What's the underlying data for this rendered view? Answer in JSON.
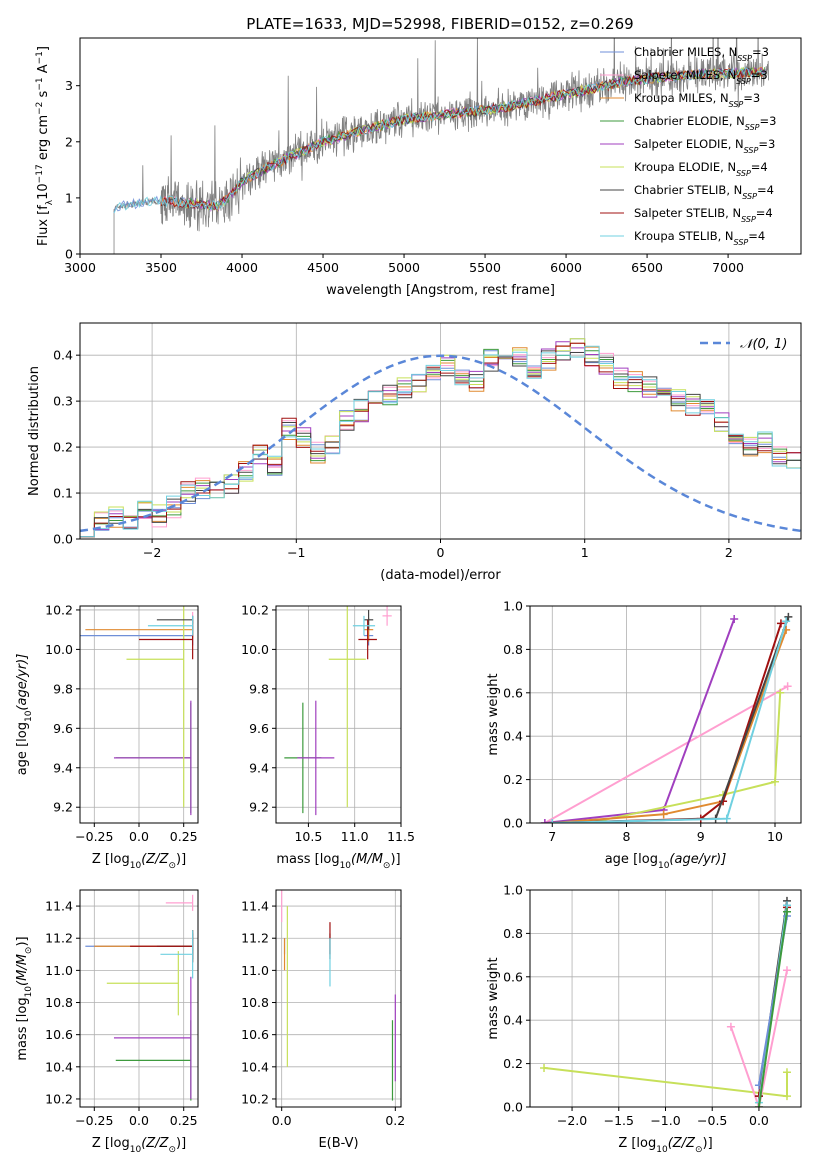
{
  "colors": {
    "Chabrier MILES": "#6f8fd8",
    "Salpeter MILES": "#ff9fd0",
    "Kroupa MILES": "#e08a30",
    "Chabrier ELODIE": "#3d9a3d",
    "Salpeter ELODIE": "#a03fbf",
    "Kroupa ELODIE": "#c7e05a",
    "Chabrier STELIB": "#444444",
    "Salpeter STELIB": "#a01010",
    "Kroupa STELIB": "#70d0e0",
    "data": "#808080",
    "gauss": "#5a87d8"
  },
  "chart_data": [
    {
      "id": "spectrum",
      "type": "line",
      "title": "PLATE=1633, MJD=52998, FIBERID=0152, z=0.269",
      "xlabel": "wavelength [Angstrom, rest frame]",
      "ylabel_main": "Flux [f",
      "ylabel_sub": "λ",
      "ylabel_rest": "10",
      "ylabel_sup1": "−17",
      "ylabel_rest2": " erg cm",
      "ylabel_sup2": "−2",
      "ylabel_rest3": " s",
      "ylabel_sup3": "−1",
      "ylabel_rest4": " A",
      "ylabel_sup4": "−1",
      "ylabel_end": "]",
      "xlim": [
        3000,
        7450
      ],
      "ylim": [
        0,
        3.85
      ],
      "xticks": [
        3000,
        3500,
        4000,
        4500,
        5000,
        5500,
        6000,
        6500,
        7000
      ],
      "yticks": [
        0,
        1,
        2,
        3
      ],
      "continuum_x": [
        3210,
        3300,
        3500,
        3700,
        3850,
        3950,
        4000,
        4200,
        4500,
        4800,
        5000,
        5300,
        5600,
        6000,
        6400,
        6800,
        7250
      ],
      "continuum_y": [
        0.82,
        0.88,
        0.95,
        0.9,
        0.85,
        1.1,
        1.3,
        1.6,
        2.0,
        2.25,
        2.4,
        2.5,
        2.6,
        2.85,
        3.1,
        3.2,
        3.25
      ],
      "legend": [
        {
          "model": "Chabrier MILES",
          "nssp": "3"
        },
        {
          "model": "Salpeter MILES",
          "nssp": "3"
        },
        {
          "model": "Kroupa MILES",
          "nssp": "3"
        },
        {
          "model": "Chabrier ELODIE",
          "nssp": "3"
        },
        {
          "model": "Salpeter ELODIE",
          "nssp": "3"
        },
        {
          "model": "Kroupa ELODIE",
          "nssp": "4"
        },
        {
          "model": "Chabrier STELIB",
          "nssp": "4"
        },
        {
          "model": "Salpeter STELIB",
          "nssp": "4"
        },
        {
          "model": "Kroupa STELIB",
          "nssp": "4"
        }
      ],
      "legend_prefix": "N",
      "legend_sub": "SSP"
    },
    {
      "id": "residuals",
      "type": "line",
      "xlabel": "(data-model)/error",
      "ylabel": "Normed distribution",
      "xlim": [
        -2.5,
        2.5
      ],
      "ylim": [
        0,
        0.47
      ],
      "xticks": [
        -2,
        -1,
        0,
        1,
        2
      ],
      "yticks": [
        0.0,
        0.1,
        0.2,
        0.3,
        0.4
      ],
      "legend": "𝒩(0, 1)",
      "bin_width": 0.1,
      "bin_start": -2.5,
      "histogram": [
        0.03,
        0.04,
        0.05,
        0.04,
        0.06,
        0.05,
        0.07,
        0.1,
        0.11,
        0.1,
        0.12,
        0.15,
        0.18,
        0.16,
        0.24,
        0.22,
        0.19,
        0.2,
        0.26,
        0.28,
        0.3,
        0.31,
        0.33,
        0.34,
        0.36,
        0.38,
        0.35,
        0.34,
        0.39,
        0.38,
        0.4,
        0.37,
        0.39,
        0.41,
        0.42,
        0.4,
        0.38,
        0.35,
        0.34,
        0.33,
        0.32,
        0.3,
        0.29,
        0.28,
        0.25,
        0.22,
        0.2,
        0.21,
        0.18,
        0.17,
        0.16,
        0.15,
        0.13,
        0.12,
        0.11,
        0.09,
        0.09,
        0.08,
        0.07,
        0.06,
        0.06,
        0.05,
        0.05,
        0.05,
        0.04,
        0.04,
        0.04,
        0.04,
        0.03,
        0.03,
        0.03,
        0.04,
        0.04,
        0.04
      ]
    },
    {
      "id": "age-vs-Z",
      "type": "scatter",
      "xlabel": "Z [log",
      "xlabel_sub": "10",
      "xlabel_rest": "(Z/Z",
      "xlabel_sub2": "⊙",
      "xlabel_end": ")]",
      "ylabel": "age  [log",
      "ylabel_sub": "10",
      "ylabel_rest": "(age/yr)]",
      "xlim": [
        -0.33,
        0.33
      ],
      "ylim": [
        9.12,
        10.22
      ],
      "xticks": [
        -0.25,
        0.0,
        0.25
      ],
      "yticks": [
        9.2,
        9.4,
        9.6,
        9.8,
        10.0,
        10.2
      ],
      "points": [
        {
          "model": "Chabrier MILES",
          "x": 0.3,
          "xerr_lo": 0.65,
          "y": 10.07,
          "yerr": 0.05
        },
        {
          "model": "Salpeter MILES",
          "x": 0.3,
          "xerr_lo": 0.0,
          "y": 10.17,
          "yerr": 0.02
        },
        {
          "model": "Kroupa MILES",
          "x": 0.3,
          "xerr_lo": 0.6,
          "y": 10.1,
          "yerr": 0.04
        },
        {
          "model": "Chabrier ELODIE",
          "x": 0.29,
          "xerr_lo": 0.42,
          "y": 9.45,
          "yerr": 0.28
        },
        {
          "model": "Salpeter ELODIE",
          "x": 0.29,
          "xerr_lo": 0.43,
          "y": 9.45,
          "yerr": 0.29
        },
        {
          "model": "Kroupa ELODIE",
          "x": 0.25,
          "xerr_lo": 0.32,
          "y": 9.95,
          "yerr": 0.75
        },
        {
          "model": "Chabrier STELIB",
          "x": 0.3,
          "xerr_lo": 0.2,
          "y": 10.15,
          "yerr": 0.02
        },
        {
          "model": "Salpeter STELIB",
          "x": 0.3,
          "xerr_lo": 0.3,
          "y": 10.05,
          "yerr": 0.1
        },
        {
          "model": "Kroupa STELIB",
          "x": 0.3,
          "xerr_lo": 0.25,
          "y": 10.12,
          "yerr": 0.05
        }
      ]
    },
    {
      "id": "age-vs-mass",
      "type": "scatter",
      "xlabel": "mass [log",
      "xlabel_sub": "10",
      "xlabel_rest": "(M/M",
      "xlabel_sub2": "⊙",
      "xlabel_end": ")]",
      "xlim": [
        10.15,
        11.5
      ],
      "ylim": [
        9.12,
        10.22
      ],
      "xticks": [
        10.5,
        11.0,
        11.5
      ],
      "yticks": [
        9.2,
        9.4,
        9.6,
        9.8,
        10.0,
        10.2
      ],
      "points": [
        {
          "model": "Chabrier MILES",
          "x": 11.15,
          "xerr": 0.05,
          "y": 10.07,
          "yerr": 0.05
        },
        {
          "model": "Salpeter MILES",
          "x": 11.35,
          "xerr": 0.05,
          "y": 10.17,
          "yerr": 0.05
        },
        {
          "model": "Kroupa MILES",
          "x": 11.15,
          "xerr": 0.05,
          "y": 10.1,
          "yerr": 0.06
        },
        {
          "model": "Chabrier ELODIE",
          "x": 10.44,
          "xerr": 0.2,
          "y": 9.45,
          "yerr": 0.28
        },
        {
          "model": "Salpeter ELODIE",
          "x": 10.58,
          "xerr": 0.2,
          "y": 9.45,
          "yerr": 0.29
        },
        {
          "model": "Kroupa ELODIE",
          "x": 10.92,
          "xerr": 0.2,
          "y": 9.95,
          "yerr": 0.75
        },
        {
          "model": "Chabrier STELIB",
          "x": 11.15,
          "xerr": 0.05,
          "y": 10.15,
          "yerr": 0.05
        },
        {
          "model": "Salpeter STELIB",
          "x": 11.14,
          "xerr": 0.1,
          "y": 10.05,
          "yerr": 0.1
        },
        {
          "model": "Kroupa STELIB",
          "x": 11.1,
          "xerr": 0.12,
          "y": 10.12,
          "yerr": 0.05
        }
      ]
    },
    {
      "id": "weight-vs-age",
      "type": "line",
      "xlabel": "age  [log",
      "xlabel_sub": "10",
      "xlabel_rest": "(age/yr)]",
      "ylabel": "mass weight",
      "xlim": [
        6.7,
        10.35
      ],
      "ylim": [
        0,
        1
      ],
      "xticks": [
        7,
        8,
        9,
        10
      ],
      "yticks": [
        0.0,
        0.2,
        0.4,
        0.6,
        0.8,
        1.0
      ],
      "series": [
        {
          "model": "Salpeter MILES",
          "x": [
            6.9,
            10.17
          ],
          "y": [
            0.0,
            0.63
          ]
        },
        {
          "model": "Salpeter ELODIE",
          "x": [
            6.9,
            8.5,
            9.45
          ],
          "y": [
            0.0,
            0.06,
            0.94
          ]
        },
        {
          "model": "Kroupa ELODIE",
          "x": [
            7.5,
            9.3,
            10.0,
            10.07
          ],
          "y": [
            0.0,
            0.13,
            0.19,
            0.6
          ]
        },
        {
          "model": "Kroupa MILES",
          "x": [
            7.0,
            8.5,
            9.3,
            10.15
          ],
          "y": [
            0.0,
            0.04,
            0.1,
            0.89
          ]
        },
        {
          "model": "Salpeter STELIB",
          "x": [
            7.0,
            9.0,
            9.3,
            10.08
          ],
          "y": [
            0.0,
            0.02,
            0.1,
            0.92
          ]
        },
        {
          "model": "Chabrier STELIB",
          "x": [
            7.0,
            9.2,
            10.18
          ],
          "y": [
            0.0,
            0.02,
            0.95
          ]
        },
        {
          "model": "Kroupa STELIB",
          "x": [
            7.0,
            9.35,
            10.15
          ],
          "y": [
            0.0,
            0.02,
            0.93
          ]
        }
      ]
    },
    {
      "id": "mass-vs-Z",
      "type": "scatter",
      "xlabel": "Z [log",
      "xlabel_sub": "10",
      "xlabel_rest": "(Z/Z",
      "xlabel_sub2": "⊙",
      "xlabel_end": ")]",
      "ylabel": "mass [log",
      "ylabel_sub": "10",
      "ylabel_rest": "(M/M",
      "ylabel_sub2": "⊙",
      "ylabel_end": ")]",
      "xlim": [
        -0.33,
        0.33
      ],
      "ylim": [
        10.15,
        11.5
      ],
      "xticks": [
        -0.25,
        0.0,
        0.25
      ],
      "yticks": [
        10.2,
        10.4,
        10.6,
        10.8,
        11.0,
        11.2,
        11.4
      ],
      "points": [
        {
          "model": "Chabrier MILES",
          "x": 0.3,
          "xerr_lo": 0.6,
          "y": 11.15,
          "yerr": 0.05
        },
        {
          "model": "Salpeter MILES",
          "x": 0.3,
          "xerr_lo": 0.15,
          "y": 11.42,
          "yerr": 0.05
        },
        {
          "model": "Kroupa MILES",
          "x": 0.3,
          "xerr_lo": 0.55,
          "y": 11.15,
          "yerr": 0.1
        },
        {
          "model": "Chabrier ELODIE",
          "x": 0.29,
          "xerr_lo": 0.42,
          "y": 10.44,
          "yerr": 0.25
        },
        {
          "model": "Salpeter ELODIE",
          "x": 0.29,
          "xerr_lo": 0.43,
          "y": 10.58,
          "yerr": 0.38
        },
        {
          "model": "Kroupa ELODIE",
          "x": 0.22,
          "xerr_lo": 0.4,
          "y": 10.92,
          "yerr": 0.2
        },
        {
          "model": "Chabrier STELIB",
          "x": 0.3,
          "xerr_lo": 0.2,
          "y": 11.15,
          "yerr": 0.08
        },
        {
          "model": "Salpeter STELIB",
          "x": 0.3,
          "xerr_lo": 0.35,
          "y": 11.15,
          "yerr": 0.1
        },
        {
          "model": "Kroupa STELIB",
          "x": 0.3,
          "xerr_lo": 0.18,
          "y": 11.1,
          "yerr": 0.15
        }
      ]
    },
    {
      "id": "mass-vs-ebv",
      "type": "scatter",
      "xlabel": "E(B-V)",
      "xlim": [
        -0.01,
        0.21
      ],
      "ylim": [
        10.15,
        11.5
      ],
      "xticks": [
        0.0,
        0.2
      ],
      "yticks": [
        10.2,
        10.4,
        10.6,
        10.8,
        11.0,
        11.2,
        11.4
      ],
      "points": [
        {
          "model": "Chabrier MILES",
          "x": 0.005,
          "y": 11.15,
          "yerr": 0.05
        },
        {
          "model": "Salpeter MILES",
          "x": 0.0,
          "y": 11.4,
          "yerr": 0.1
        },
        {
          "model": "Kroupa MILES",
          "x": 0.005,
          "y": 11.1,
          "yerr": 0.1
        },
        {
          "model": "Chabrier ELODIE",
          "x": 0.195,
          "y": 10.44,
          "yerr": 0.25
        },
        {
          "model": "Salpeter ELODIE",
          "x": 0.2,
          "y": 10.58,
          "yerr": 0.27
        },
        {
          "model": "Kroupa ELODIE",
          "x": 0.01,
          "y": 10.9,
          "yerr": 0.5
        },
        {
          "model": "Chabrier STELIB",
          "x": 0.085,
          "y": 11.15,
          "yerr": 0.08
        },
        {
          "model": "Salpeter STELIB",
          "x": 0.085,
          "y": 11.2,
          "yerr": 0.1
        },
        {
          "model": "Kroupa STELIB",
          "x": 0.085,
          "y": 11.05,
          "yerr": 0.15
        }
      ]
    },
    {
      "id": "weight-vs-Z",
      "type": "line",
      "xlabel": "Z [log",
      "xlabel_sub": "10",
      "xlabel_rest": "(Z/Z",
      "xlabel_sub2": "⊙",
      "xlabel_end": ")]",
      "ylabel": "mass weight",
      "xlim": [
        -2.45,
        0.45
      ],
      "ylim": [
        0,
        1
      ],
      "xticks": [
        -2.0,
        -1.5,
        -1.0,
        -0.5,
        0.0
      ],
      "yticks": [
        0.0,
        0.2,
        0.4,
        0.6,
        0.8,
        1.0
      ],
      "series": [
        {
          "model": "Kroupa ELODIE",
          "x": [
            -2.3,
            0.3,
            0.3
          ],
          "y": [
            0.18,
            0.05,
            0.16
          ]
        },
        {
          "model": "Salpeter MILES",
          "x": [
            -0.3,
            0.0,
            0.3
          ],
          "y": [
            0.37,
            0.0,
            0.63
          ]
        },
        {
          "model": "Chabrier STELIB",
          "x": [
            0.0,
            0.3
          ],
          "y": [
            0.05,
            0.95
          ]
        },
        {
          "model": "Salpeter STELIB",
          "x": [
            0.0,
            0.3
          ],
          "y": [
            0.05,
            0.92
          ]
        },
        {
          "model": "Kroupa STELIB",
          "x": [
            0.0,
            0.3
          ],
          "y": [
            0.02,
            0.93
          ]
        },
        {
          "model": "Chabrier MILES",
          "x": [
            0.0,
            0.3
          ],
          "y": [
            0.1,
            0.88
          ]
        },
        {
          "model": "Chabrier ELODIE",
          "x": [
            0.0,
            0.3
          ],
          "y": [
            0.0,
            0.9
          ]
        }
      ]
    }
  ]
}
